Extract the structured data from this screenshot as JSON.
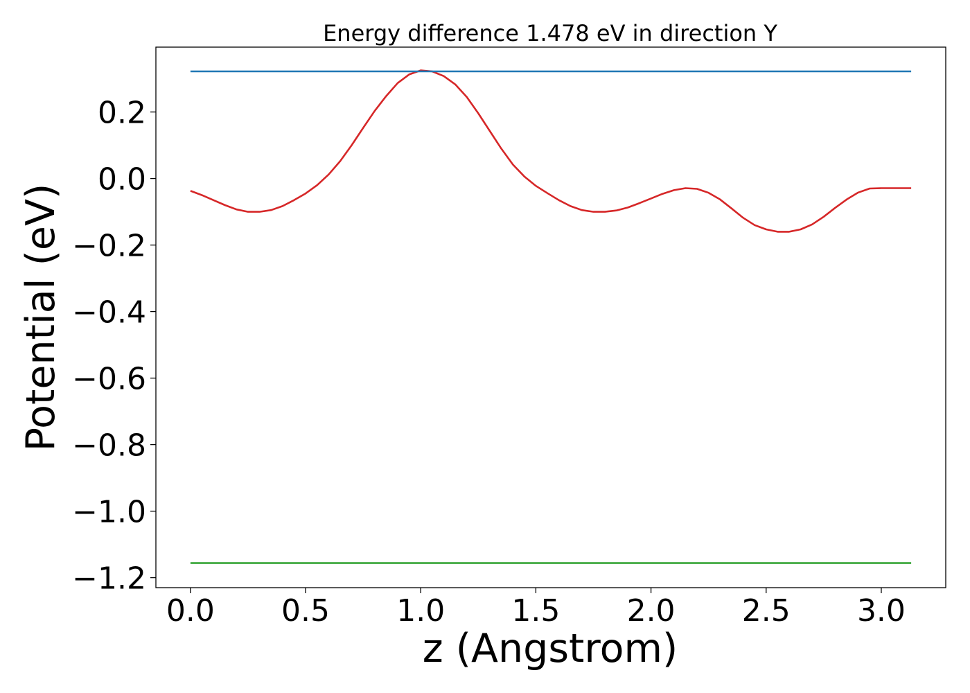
{
  "chart_data": {
    "type": "line",
    "title": "Energy difference 1.478 eV in direction Y",
    "xlabel": "z (Angstrom)",
    "ylabel": "Potential (eV)",
    "xlim": [
      -0.15,
      3.28
    ],
    "ylim": [
      -1.23,
      0.395
    ],
    "xticks": [
      0.0,
      0.5,
      1.0,
      1.5,
      2.0,
      2.5,
      3.0
    ],
    "xtick_labels": [
      "0.0",
      "0.5",
      "1.0",
      "1.5",
      "2.0",
      "2.5",
      "3.0"
    ],
    "yticks": [
      0.2,
      0.0,
      -0.2,
      -0.4,
      -0.6,
      -0.8,
      -1.0,
      -1.2
    ],
    "ytick_labels": [
      "0.2",
      "0.0",
      "−0.2",
      "−0.4",
      "−0.6",
      "−0.8",
      "−1.0",
      "−1.2"
    ],
    "grid": false,
    "series": [
      {
        "color": "#d62728",
        "x": [
          0.0,
          0.05,
          0.1,
          0.15,
          0.2,
          0.25,
          0.3,
          0.35,
          0.4,
          0.45,
          0.5,
          0.55,
          0.6,
          0.65,
          0.7,
          0.75,
          0.8,
          0.85,
          0.9,
          0.95,
          1.0,
          1.05,
          1.1,
          1.15,
          1.2,
          1.25,
          1.3,
          1.35,
          1.4,
          1.45,
          1.5,
          1.55,
          1.6,
          1.65,
          1.7,
          1.75,
          1.8,
          1.85,
          1.9,
          1.95,
          2.0,
          2.05,
          2.1,
          2.15,
          2.2,
          2.25,
          2.3,
          2.35,
          2.4,
          2.45,
          2.5,
          2.55,
          2.6,
          2.65,
          2.7,
          2.75,
          2.8,
          2.85,
          2.9,
          2.95,
          3.0,
          3.05,
          3.1,
          3.13
        ],
        "y": [
          -0.037,
          -0.05,
          -0.065,
          -0.08,
          -0.093,
          -0.1,
          -0.1,
          -0.095,
          -0.083,
          -0.065,
          -0.045,
          -0.02,
          0.012,
          0.052,
          0.1,
          0.152,
          0.203,
          0.248,
          0.287,
          0.313,
          0.325,
          0.322,
          0.308,
          0.283,
          0.245,
          0.196,
          0.143,
          0.09,
          0.042,
          0.006,
          -0.022,
          -0.044,
          -0.065,
          -0.083,
          -0.095,
          -0.1,
          -0.1,
          -0.096,
          -0.087,
          -0.074,
          -0.06,
          -0.046,
          -0.035,
          -0.029,
          -0.031,
          -0.043,
          -0.063,
          -0.09,
          -0.118,
          -0.14,
          -0.153,
          -0.16,
          -0.16,
          -0.153,
          -0.138,
          -0.115,
          -0.088,
          -0.063,
          -0.042,
          -0.03,
          -0.029,
          -0.029,
          -0.029,
          -0.029
        ]
      },
      {
        "color": "#1f77b4",
        "x": [
          0.0,
          3.13
        ],
        "y": [
          0.322,
          0.322
        ]
      },
      {
        "color": "#2ca02c",
        "x": [
          0.0,
          3.13
        ],
        "y": [
          -1.156,
          -1.156
        ]
      }
    ]
  }
}
